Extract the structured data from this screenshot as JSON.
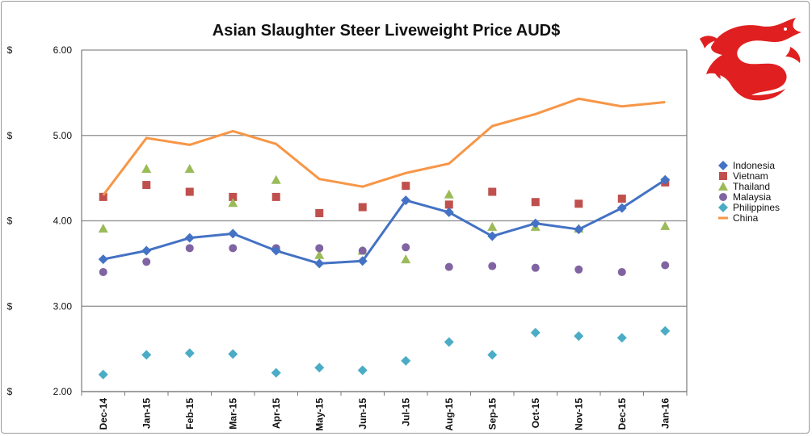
{
  "chart_data": {
    "type": "line",
    "title": "Asian Slaughter Steer Liveweight Price AUD$",
    "categories": [
      "Dec-14",
      "Jan-15",
      "Feb-15",
      "Mar-15",
      "Apr-15",
      "May-15",
      "Jun-15",
      "Jul-15",
      "Aug-15",
      "Sep-15",
      "Oct-15",
      "Nov-15",
      "Dec-15",
      "Jan-16"
    ],
    "ylim": [
      2.0,
      6.0
    ],
    "yticks": [
      "2.00",
      "3.00",
      "4.00",
      "5.00",
      "6.00"
    ],
    "y_currency_label": "$",
    "grid": true,
    "legend_position": "right",
    "series": [
      {
        "name": "Indonesia",
        "mode": "line",
        "marker": "diamond",
        "color": "#4472C4",
        "values": [
          3.55,
          3.65,
          3.8,
          3.85,
          3.65,
          3.5,
          3.53,
          4.24,
          4.1,
          3.82,
          3.97,
          3.9,
          4.15,
          4.48
        ]
      },
      {
        "name": "Vietnam",
        "mode": "markers",
        "marker": "square",
        "color": "#C0504D",
        "values": [
          4.28,
          4.42,
          4.34,
          4.28,
          4.28,
          4.09,
          4.16,
          4.41,
          4.19,
          4.34,
          4.22,
          4.2,
          4.26,
          4.45
        ]
      },
      {
        "name": "Thailand",
        "mode": "markers",
        "marker": "triangle",
        "color": "#9BBB59",
        "values": [
          3.91,
          4.61,
          4.61,
          4.21,
          4.48,
          3.6,
          3.65,
          3.55,
          4.31,
          3.93,
          3.93,
          3.91,
          null,
          3.94
        ]
      },
      {
        "name": "Malaysia",
        "mode": "markers",
        "marker": "circle",
        "color": "#8064A2",
        "values": [
          3.4,
          3.52,
          3.68,
          3.68,
          3.68,
          3.68,
          3.65,
          3.69,
          3.46,
          3.47,
          3.45,
          3.43,
          3.4,
          3.48
        ]
      },
      {
        "name": "Philippines",
        "mode": "markers",
        "marker": "diamond",
        "color": "#4BACC6",
        "values": [
          2.2,
          2.43,
          2.45,
          2.44,
          2.22,
          2.28,
          2.25,
          2.36,
          2.58,
          2.43,
          2.69,
          2.65,
          2.63,
          2.71
        ]
      },
      {
        "name": "China",
        "mode": "line",
        "marker": "none",
        "color": "#F79646",
        "values": [
          4.3,
          4.97,
          4.89,
          5.05,
          4.9,
          4.49,
          4.4,
          4.56,
          4.67,
          5.11,
          5.25,
          5.43,
          5.34,
          5.39
        ]
      }
    ]
  },
  "logo": {
    "name": "red dragon emblem",
    "color": "#E02020"
  }
}
